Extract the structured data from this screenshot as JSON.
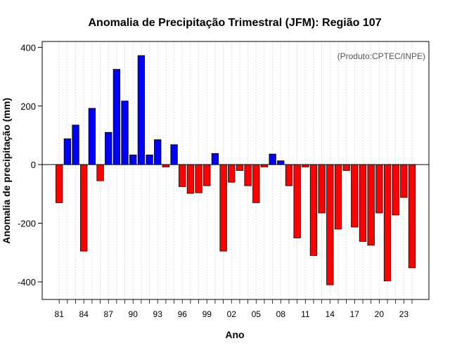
{
  "chart_data": {
    "type": "bar",
    "title": "Anomalia de Precipitação Trimestral (JFM): Região 107",
    "xlabel": "Ano",
    "ylabel": "Anomalia de precipitação (mm)",
    "annotation": "(Produto:CPTEC/INPE)",
    "ylim": [
      -460,
      420
    ],
    "yticks": [
      -400,
      -200,
      0,
      200,
      400
    ],
    "grid": "vertical dotted",
    "positive_color": "#0000ff",
    "negative_color": "#ff0000",
    "categories": [
      "81",
      "82",
      "83",
      "84",
      "85",
      "86",
      "87",
      "88",
      "89",
      "90",
      "91",
      "92",
      "93",
      "94",
      "95",
      "96",
      "97",
      "98",
      "99",
      "00",
      "01",
      "02",
      "03",
      "04",
      "05",
      "06",
      "07",
      "08",
      "09",
      "10",
      "11",
      "12",
      "13",
      "14",
      "15",
      "16",
      "17",
      "18",
      "19",
      "20",
      "21",
      "22",
      "23",
      "24"
    ],
    "tick_labels": [
      "81",
      "84",
      "87",
      "90",
      "93",
      "96",
      "99",
      "02",
      "05",
      "08",
      "11",
      "14",
      "17",
      "20",
      "23"
    ],
    "values": [
      -130,
      88,
      135,
      -295,
      192,
      -55,
      110,
      325,
      217,
      33,
      372,
      33,
      85,
      -8,
      68,
      -75,
      -98,
      -96,
      -72,
      38,
      -295,
      -60,
      -20,
      -72,
      -130,
      -8,
      36,
      13,
      -72,
      -250,
      -8,
      -310,
      -165,
      -410,
      -220,
      -20,
      -213,
      -262,
      -275,
      -165,
      -397,
      -172,
      -112,
      -352
    ]
  }
}
